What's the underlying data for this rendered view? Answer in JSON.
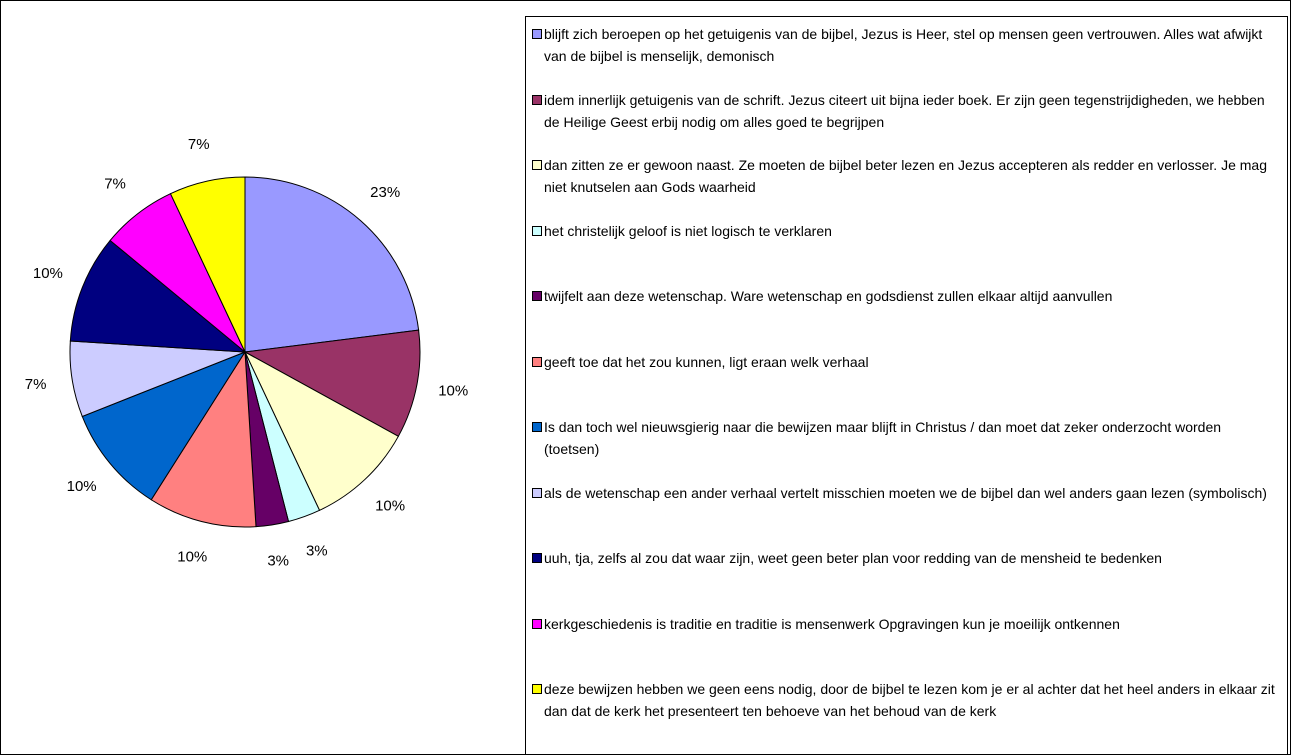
{
  "chart_data": {
    "type": "pie",
    "categories": [
      "blijft zich beroepen op het getuigenis van de bijbel, Jezus is Heer, stel op mensen geen vertrouwen. Alles wat afwijkt van de bijbel is menselijk, demonisch",
      "idem innerlijk getuigenis van de schrift. Jezus citeert uit bijna ieder boek. Er zijn geen tegenstrijdigheden, we hebben de Heilige Geest erbij nodig om alles goed te begrijpen",
      "dan zitten ze er gewoon naast. Ze moeten de bijbel beter lezen en Jezus accepteren als redder en verlosser. Je mag niet knutselen aan Gods waarheid",
      "het christelijk geloof is niet logisch te verklaren",
      "twijfelt aan deze wetenschap. Ware wetenschap en godsdienst zullen elkaar altijd aanvullen",
      "geeft toe dat het zou kunnen, ligt eraan welk verhaal",
      "Is dan toch wel nieuwsgierig naar die bewijzen maar blijft in Christus / dan moet dat zeker onderzocht worden (toetsen)",
      "als de wetenschap een ander verhaal vertelt misschien moeten we de bijbel dan wel anders gaan lezen (symbolisch)",
      "uuh, tja, zelfs al zou dat waar zijn, weet geen beter plan voor redding van de mensheid te bedenken",
      "kerkgeschiedenis is traditie en traditie is mensenwerk Opgravingen kun je moeilijk ontkennen",
      "deze bewijzen hebben we geen eens nodig, door de bijbel te lezen kom je er al achter dat het heel anders in elkaar zit dan dat de kerk het presenteert ten behoeve van het behoud van de kerk"
    ],
    "values": [
      23,
      10,
      10,
      3,
      3,
      10,
      10,
      7,
      10,
      7,
      7
    ],
    "value_labels": [
      "23%",
      "10%",
      "10%",
      "3%",
      "3%",
      "10%",
      "10%",
      "7%",
      "10%",
      "7%",
      "7%"
    ],
    "colors": [
      "#9999ff",
      "#993366",
      "#ffffcc",
      "#ccffff",
      "#660066",
      "#ff8080",
      "#0066cc",
      "#ccccff",
      "#000080",
      "#ff00ff",
      "#ffff00"
    ],
    "legend": "right"
  }
}
